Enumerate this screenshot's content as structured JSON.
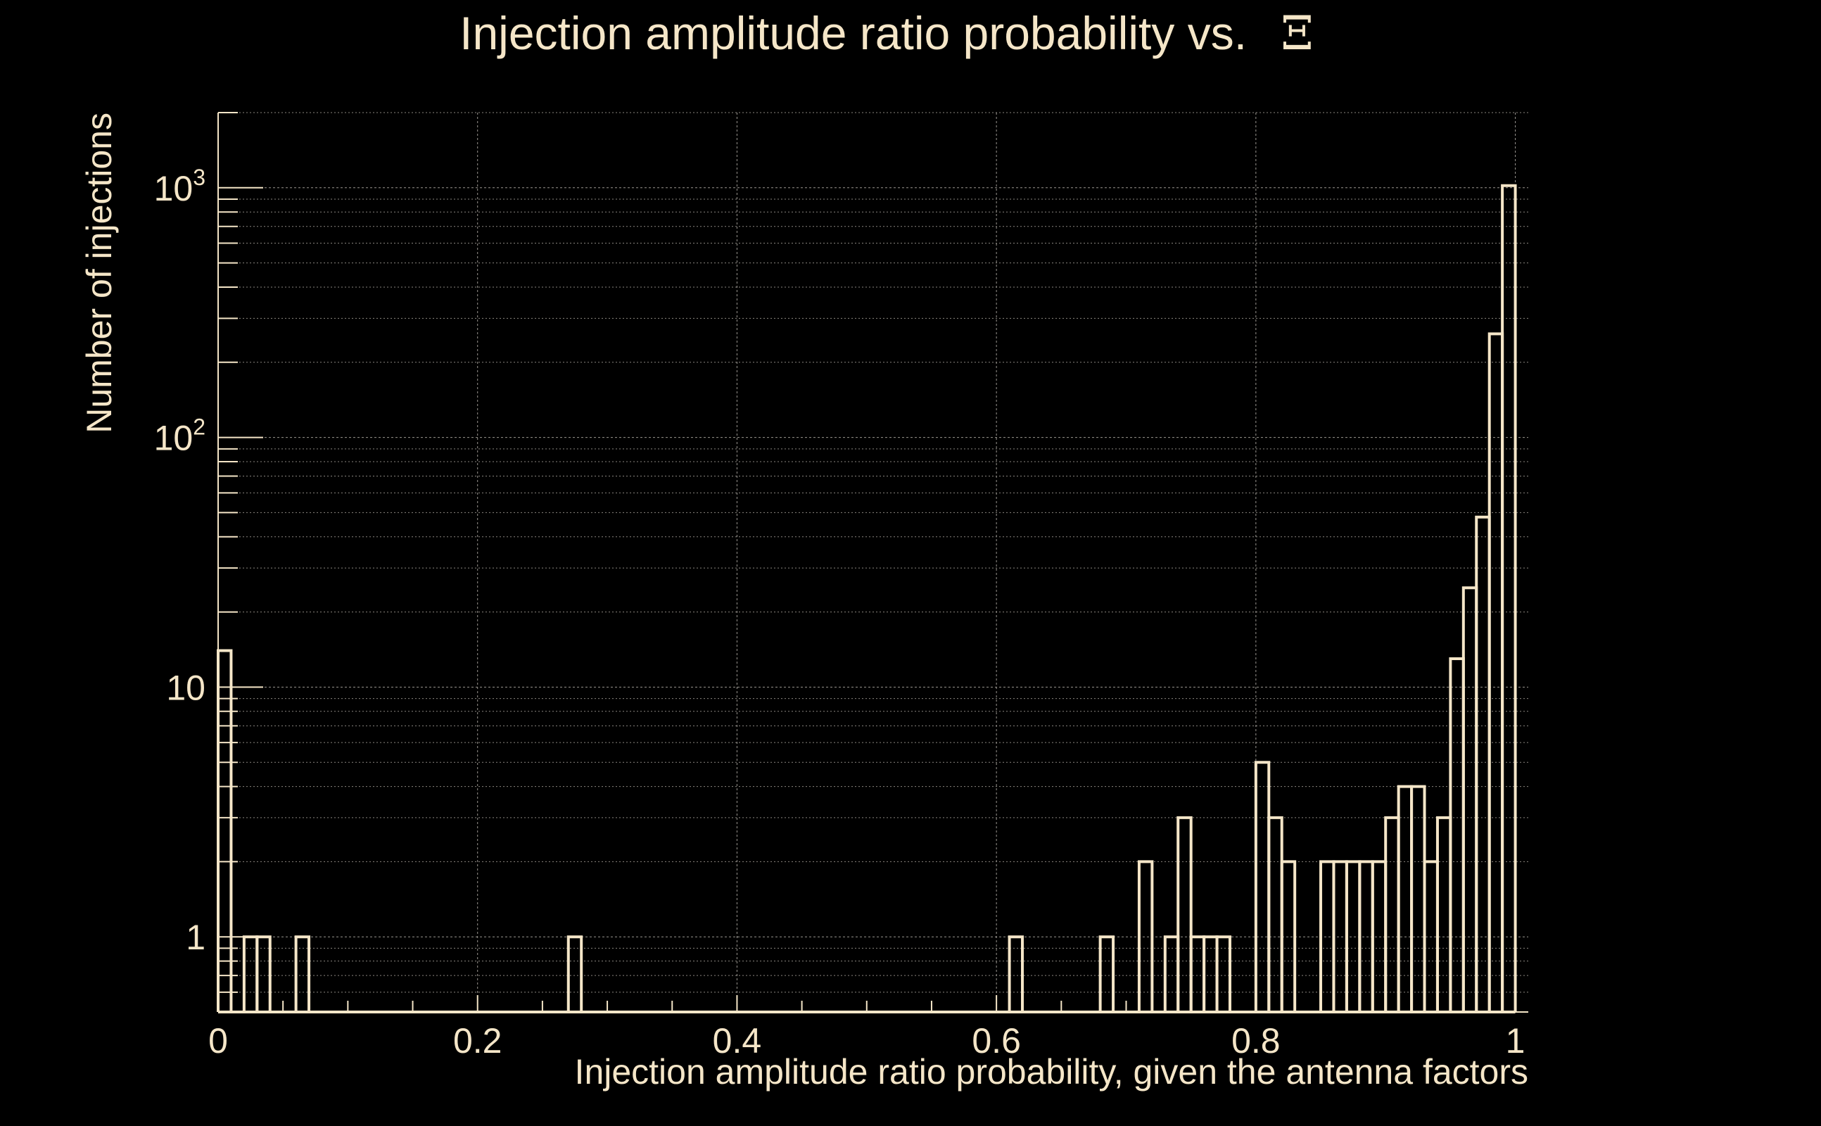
{
  "colors": {
    "background": "#000000",
    "foreground": "#f5e6c8",
    "grid": "#9a9690"
  },
  "chart_data": {
    "type": "histogram",
    "title": "Injection amplitude ratio probability vs.",
    "title_symbol": "Ξ",
    "xlabel": "Injection amplitude ratio probability, given the antenna factors",
    "ylabel": "Number of injections",
    "xlim": [
      0,
      1.01
    ],
    "ylim": [
      0.5,
      2000
    ],
    "y_scale": "log",
    "grid": true,
    "x_ticks": [
      {
        "value": 0,
        "label": "0"
      },
      {
        "value": 0.2,
        "label": "0.2"
      },
      {
        "value": 0.4,
        "label": "0.4"
      },
      {
        "value": 0.6,
        "label": "0.6"
      },
      {
        "value": 0.8,
        "label": "0.8"
      },
      {
        "value": 1,
        "label": "1"
      }
    ],
    "y_ticks": [
      {
        "value": 1,
        "base": "1",
        "exp": ""
      },
      {
        "value": 10,
        "base": "10",
        "exp": ""
      },
      {
        "value": 100,
        "base": "10",
        "exp": "2"
      },
      {
        "value": 1000,
        "base": "10",
        "exp": "3"
      }
    ],
    "bin_width": 0.01,
    "bins": [
      {
        "x": 0.0,
        "count": 14
      },
      {
        "x": 0.02,
        "count": 1
      },
      {
        "x": 0.03,
        "count": 1
      },
      {
        "x": 0.06,
        "count": 1
      },
      {
        "x": 0.27,
        "count": 1
      },
      {
        "x": 0.61,
        "count": 1
      },
      {
        "x": 0.68,
        "count": 1
      },
      {
        "x": 0.71,
        "count": 2
      },
      {
        "x": 0.73,
        "count": 1
      },
      {
        "x": 0.74,
        "count": 3
      },
      {
        "x": 0.75,
        "count": 1
      },
      {
        "x": 0.76,
        "count": 1
      },
      {
        "x": 0.77,
        "count": 1
      },
      {
        "x": 0.8,
        "count": 5
      },
      {
        "x": 0.81,
        "count": 3
      },
      {
        "x": 0.82,
        "count": 2
      },
      {
        "x": 0.85,
        "count": 2
      },
      {
        "x": 0.86,
        "count": 2
      },
      {
        "x": 0.87,
        "count": 2
      },
      {
        "x": 0.88,
        "count": 2
      },
      {
        "x": 0.89,
        "count": 2
      },
      {
        "x": 0.9,
        "count": 3
      },
      {
        "x": 0.91,
        "count": 4
      },
      {
        "x": 0.92,
        "count": 4
      },
      {
        "x": 0.93,
        "count": 2
      },
      {
        "x": 0.94,
        "count": 3
      },
      {
        "x": 0.95,
        "count": 13
      },
      {
        "x": 0.96,
        "count": 25
      },
      {
        "x": 0.97,
        "count": 48
      },
      {
        "x": 0.98,
        "count": 260
      },
      {
        "x": 0.99,
        "count": 1020
      }
    ]
  }
}
